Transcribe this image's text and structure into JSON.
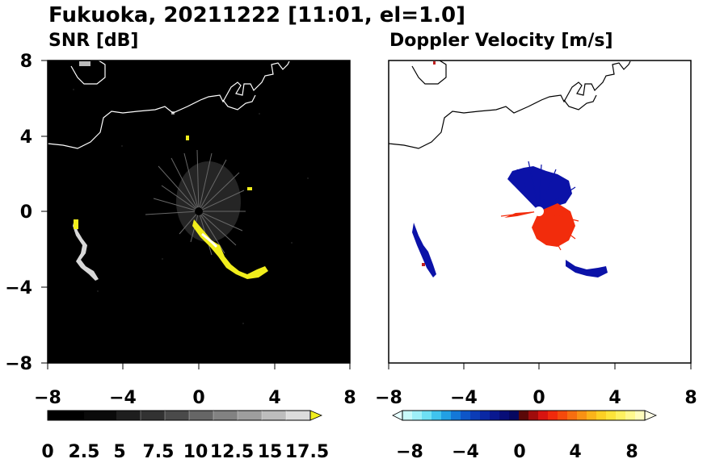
{
  "title": "Fukuoka, 20211222 [11:01, el=1.0]",
  "panels": [
    {
      "subtitle": "SNR [dB]",
      "x_ticks": [
        "−8",
        "−4",
        "0",
        "4",
        "8"
      ],
      "y_ticks": [
        "8",
        "4",
        "0",
        "−4",
        "−8"
      ]
    },
    {
      "subtitle": "Doppler Velocity [m/s]",
      "x_ticks": [
        "−8",
        "−4",
        "0",
        "4",
        "8"
      ]
    }
  ],
  "snr_colorbar": {
    "labels": [
      "0",
      "2.5",
      "5",
      "7.5",
      "10",
      "12.5",
      "15",
      "17.5"
    ]
  },
  "velocity_colorbar": {
    "labels": [
      "−8",
      "−4",
      "0",
      "4",
      "8"
    ]
  },
  "colors": {
    "snr_background": "#000000",
    "snr_max": "#f7f716",
    "velocity_negative": "#0a10a6",
    "velocity_positive": "#f22c0c"
  }
}
